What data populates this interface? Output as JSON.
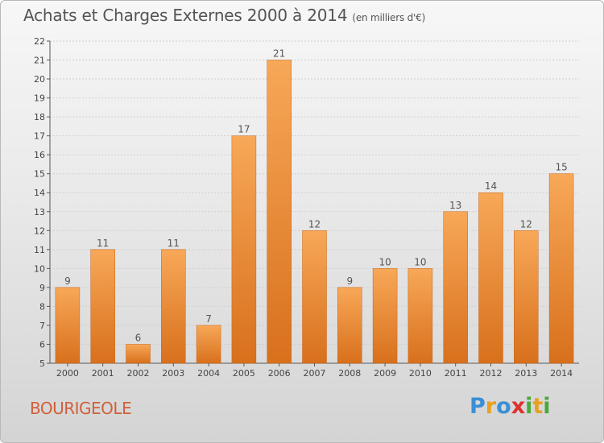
{
  "title": "Achats et Charges Externes 2000 à 2014",
  "unit": "(en milliers d'€)",
  "commune": "BOURIGEOLE",
  "logo": {
    "letters": [
      "P",
      "r",
      "o",
      "x",
      "i",
      "t",
      "i"
    ],
    "colors": [
      "#3a8fd6",
      "#e8a020",
      "#3a8fd6",
      "#e03030",
      "#4aa83a",
      "#e8a020",
      "#4aa83a"
    ]
  },
  "chart_data": {
    "type": "bar",
    "categories": [
      "2000",
      "2001",
      "2002",
      "2003",
      "2004",
      "2005",
      "2006",
      "2007",
      "2008",
      "2009",
      "2010",
      "2011",
      "2012",
      "2013",
      "2014"
    ],
    "values": [
      9,
      11,
      6,
      11,
      7,
      17,
      21,
      12,
      9,
      10,
      10,
      13,
      14,
      12,
      15
    ],
    "ylim": [
      5,
      22
    ],
    "yticks": [
      5,
      6,
      7,
      8,
      9,
      10,
      11,
      12,
      13,
      14,
      15,
      16,
      17,
      18,
      19,
      20,
      21,
      22
    ],
    "grid": true,
    "bar_color": "#e8822e"
  }
}
